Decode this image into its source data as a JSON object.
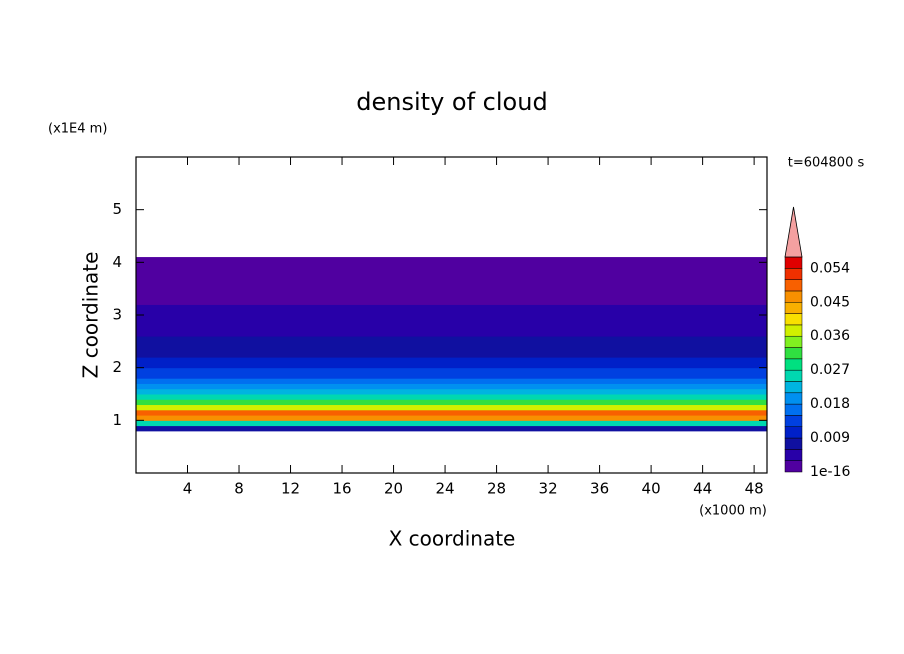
{
  "chart_data": {
    "type": "contour",
    "title": "density of cloud",
    "x_label": "X coordinate",
    "y_label": "Z coordinate",
    "x_unit": "(x1000 m)",
    "y_unit": "(x1E4 m)",
    "time_label": "t=604800 s",
    "xlim": [
      0,
      49
    ],
    "xticks": [
      4,
      8,
      12,
      16,
      20,
      24,
      28,
      32,
      36,
      40,
      44,
      48
    ],
    "ylim": [
      0,
      6
    ],
    "yticks": [
      1,
      2,
      3,
      4,
      5
    ],
    "z_edges": [
      0.8,
      0.9,
      1.0,
      1.1,
      1.2,
      1.3,
      1.4,
      1.5,
      1.6,
      1.7,
      1.8,
      1.9,
      2.0,
      2.2,
      2.4,
      2.6,
      2.8,
      3.0,
      3.2,
      4.0,
      4.1
    ],
    "values": [
      0.006,
      0.024,
      0.045,
      0.05,
      0.036,
      0.03,
      0.025,
      0.022,
      0.02,
      0.016,
      0.013,
      0.012,
      0.01,
      0.008,
      0.006,
      0.005,
      0.004,
      0.003,
      0.001,
      0.0005
    ],
    "levels": [
      1e-16,
      0.003,
      0.006,
      0.009,
      0.012,
      0.015,
      0.018,
      0.021,
      0.024,
      0.027,
      0.03,
      0.033,
      0.036,
      0.039,
      0.042,
      0.045,
      0.048,
      0.051,
      0.054,
      0.057
    ],
    "colors": [
      "#5000a0",
      "#2800a8",
      "#1010a0",
      "#0020c8",
      "#0040e0",
      "#0070f0",
      "#0090f0",
      "#00b4e0",
      "#00d8b0",
      "#00e080",
      "#30e040",
      "#80f020",
      "#d0f000",
      "#f8e000",
      "#f8b000",
      "#f89000",
      "#f86000",
      "#f03000",
      "#e00000"
    ],
    "extend_color": "#f4a0a0",
    "colorbar_ticks": [
      1e-16,
      0.009,
      0.018,
      0.027,
      0.036,
      0.045,
      0.054
    ]
  }
}
